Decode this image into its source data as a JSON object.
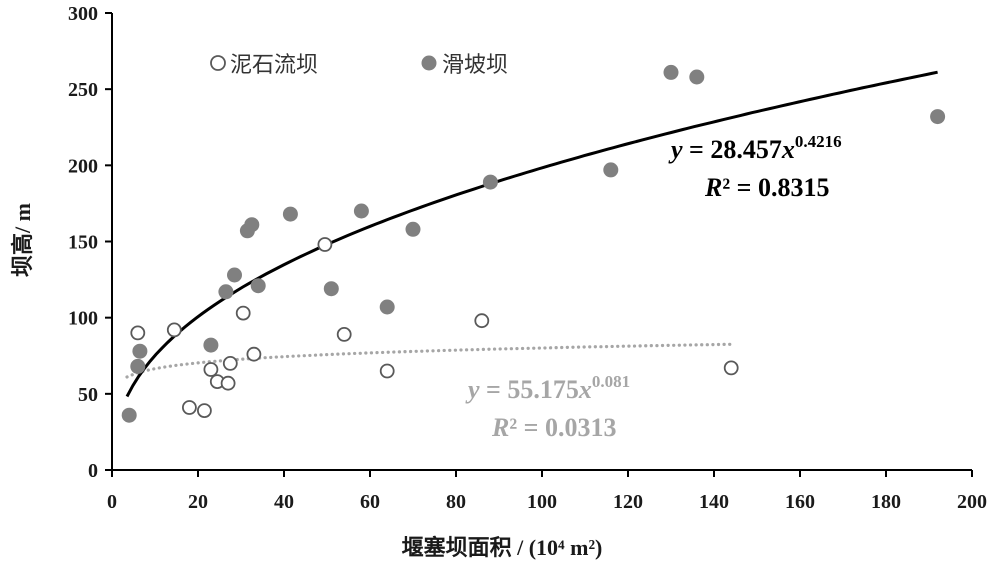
{
  "chart_data": {
    "type": "scatter",
    "xlabel": "堰塞坝面积 / (10⁴ m²)",
    "ylabel": "坝高/ m",
    "xlim": [
      0,
      200
    ],
    "ylim": [
      0,
      300
    ],
    "xticks": [
      0,
      20,
      40,
      60,
      80,
      100,
      120,
      140,
      160,
      180,
      200
    ],
    "yticks": [
      0,
      50,
      100,
      150,
      200,
      250,
      300
    ],
    "grid": false,
    "legend_position": "top-left",
    "series": [
      {
        "name": "泥石流坝",
        "marker": "open-circle",
        "color": "#595959",
        "points": [
          [
            6,
            90
          ],
          [
            14.5,
            92
          ],
          [
            18,
            41
          ],
          [
            21.5,
            39
          ],
          [
            23,
            66
          ],
          [
            24.5,
            58
          ],
          [
            27,
            57
          ],
          [
            27.5,
            70
          ],
          [
            30.5,
            103
          ],
          [
            33,
            76
          ],
          [
            49.5,
            148
          ],
          [
            54,
            89
          ],
          [
            64,
            65
          ],
          [
            86,
            98
          ],
          [
            144,
            67
          ]
        ],
        "fit": {
          "equation_y": "y",
          "equation_mid": " = 55.175",
          "equation_x": "x",
          "equation_exp": "0.081",
          "r2_r": "R",
          "r2_rest": "² = 0.0313",
          "coef": 55.175,
          "power": 0.081,
          "x_range": [
            3.5,
            144
          ],
          "color": "#a6a6a6",
          "style": "dotted"
        }
      },
      {
        "name": "滑坡坝",
        "marker": "filled-circle",
        "color": "#808080",
        "points": [
          [
            4,
            36
          ],
          [
            6,
            68
          ],
          [
            6.5,
            78
          ],
          [
            23,
            82
          ],
          [
            26.5,
            117
          ],
          [
            28.5,
            128
          ],
          [
            31.5,
            157
          ],
          [
            32.5,
            161
          ],
          [
            34,
            121
          ],
          [
            41.5,
            168
          ],
          [
            51,
            119
          ],
          [
            58,
            170
          ],
          [
            64,
            107
          ],
          [
            70,
            158
          ],
          [
            88,
            189
          ],
          [
            116,
            197
          ],
          [
            130,
            261
          ],
          [
            136,
            258
          ],
          [
            192,
            232
          ]
        ],
        "fit": {
          "equation_y": "y",
          "equation_mid": " = 28.457",
          "equation_x": "x",
          "equation_exp": "0.4216",
          "r2_r": "R",
          "r2_rest": "² = 0.8315",
          "coef": 28.457,
          "power": 0.4216,
          "x_range": [
            3.5,
            192
          ],
          "color": "#000000",
          "style": "solid"
        }
      }
    ]
  }
}
